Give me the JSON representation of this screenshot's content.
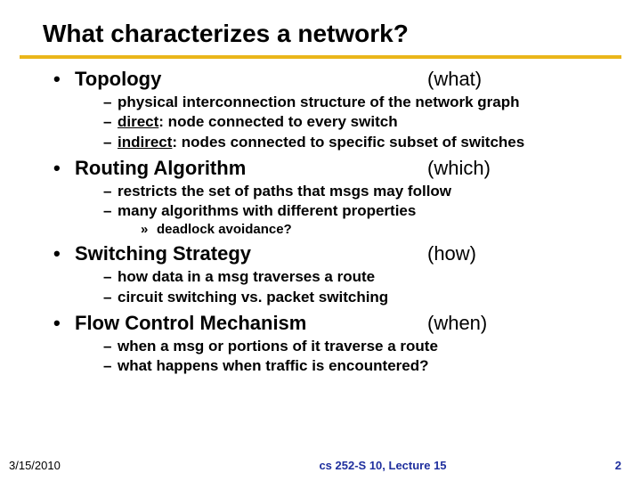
{
  "colors": {
    "rule": "#eab61a",
    "footer_center": "#1f2f9e",
    "footer_page": "#1f2f9e"
  },
  "title": "What characterizes a network?",
  "sections": [
    {
      "label": "Topology",
      "tag": "(what)",
      "subs": [
        {
          "plain": "physical interconnection structure of the network graph"
        },
        {
          "lead_under": "direct",
          "rest": ": node connected to every switch"
        },
        {
          "lead_under": "indirect",
          "rest": ": nodes connected to specific subset of switches"
        }
      ]
    },
    {
      "label": "Routing Algorithm",
      "tag": "(which)",
      "subs": [
        {
          "plain": "restricts the set of paths that msgs may follow"
        },
        {
          "plain": "many algorithms with different properties"
        }
      ],
      "subsubs": [
        "deadlock avoidance?"
      ]
    },
    {
      "label": "Switching Strategy",
      "tag": "(how)",
      "subs": [
        {
          "plain": "how data in a msg traverses a route"
        },
        {
          "plain": "circuit switching vs. packet switching"
        }
      ]
    },
    {
      "label": "Flow Control Mechanism",
      "tag": "(when)",
      "subs": [
        {
          "plain": "when a msg or portions of it traverse a route"
        },
        {
          "plain": "what happens when traffic is encountered?"
        }
      ]
    }
  ],
  "footer": {
    "date": "3/15/2010",
    "center": "cs 252-S 10, Lecture 15",
    "page": "2"
  }
}
